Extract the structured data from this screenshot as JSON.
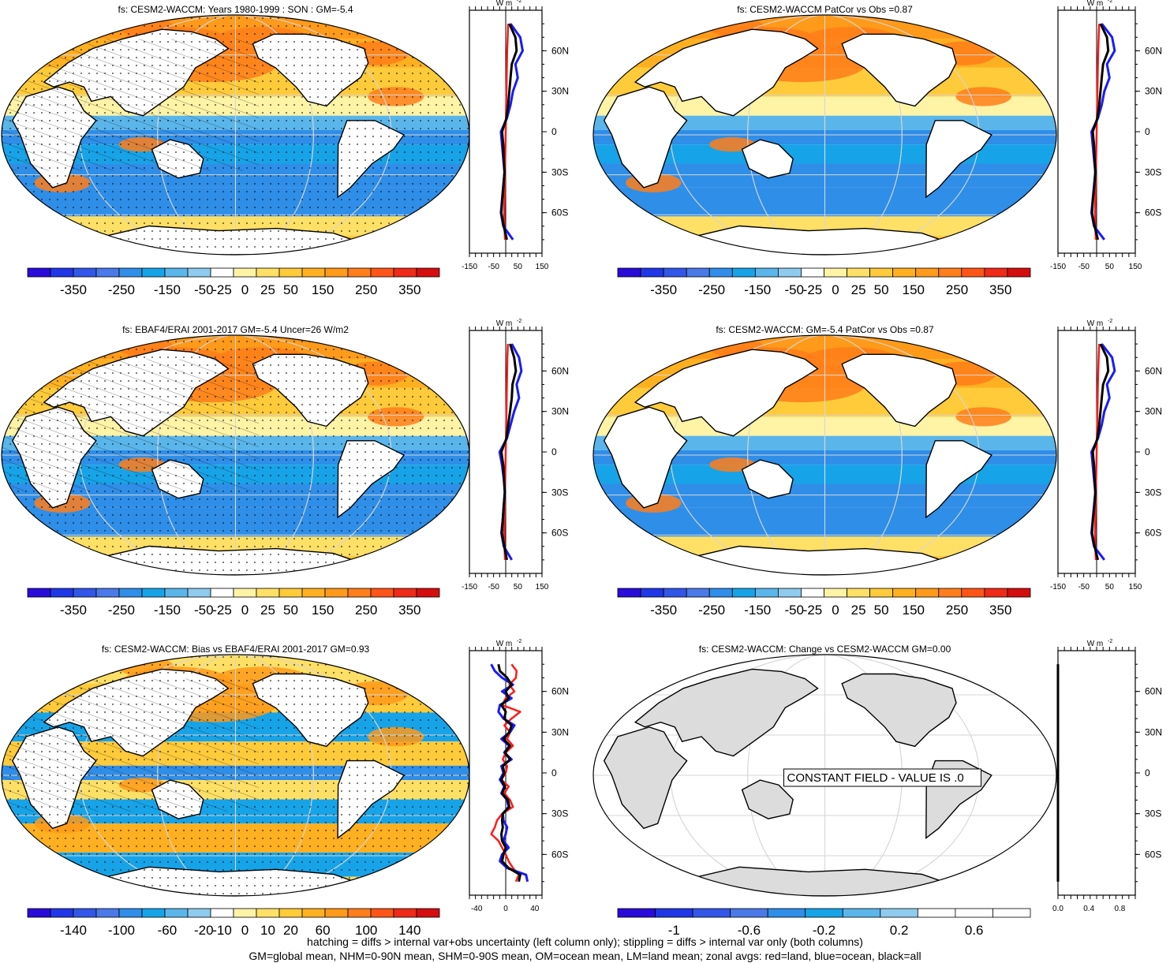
{
  "variable": "fs",
  "footer": {
    "line1": "hatching = diffs > internal var+obs uncertainty (left column only); stippling = diffs > internal var only (both columns)",
    "line2": "GM=global mean, NHM=0-90N mean, SHM=0-90S mean, OM=ocean mean, LM=land mean; zonal avgs: red=land, blue=ocean, black=all"
  },
  "colors": {
    "land": "#ffffff",
    "land_gray": "#dcdcdc",
    "grid": "#d6d6d6",
    "zonal_land": "#ff1a1a",
    "zonal_ocean": "#1a1aff",
    "zonal_all": "#000000",
    "palette": [
      "#2a0bd9",
      "#1f37e6",
      "#3257e8",
      "#4a79e8",
      "#2f8ee8",
      "#17a3e8",
      "#5ab6ea",
      "#8ecbee",
      "#ffffff",
      "#fff3a6",
      "#ffe066",
      "#ffcb3a",
      "#ffb020",
      "#ff9a1a",
      "#ff7e1a",
      "#ff5518",
      "#ee2a18",
      "#d40e0e"
    ]
  },
  "panels": [
    {
      "id": "model",
      "title": "fs: CESM2-WACCM: Years 1980-1999 : SON : GM=-5.4",
      "map_fill": "diverging",
      "hatching": true,
      "stippling": true,
      "colorbar": {
        "labels": [
          "-350",
          "-250",
          "-150",
          "-50",
          "-25",
          "0",
          "25",
          "50",
          "150",
          "250",
          "350"
        ],
        "n_colors": 18
      },
      "zonal": {
        "unit_label": "W m",
        "unit_exp": "-2",
        "xticks": [
          "-150",
          "-50",
          "50",
          "150"
        ],
        "xlim": [
          -150,
          150
        ],
        "lat_labels": [
          "60N",
          "30N",
          "0",
          "30S",
          "60S"
        ],
        "lat": [
          80,
          70,
          60,
          50,
          40,
          30,
          20,
          10,
          0,
          -10,
          -20,
          -30,
          -40,
          -50,
          -60,
          -70,
          -80
        ],
        "land": [
          10,
          8,
          6,
          5,
          4,
          3,
          2,
          1,
          0,
          -1,
          -2,
          -3,
          -4,
          -5,
          -6,
          -5,
          -3
        ],
        "ocean": [
          20,
          60,
          70,
          40,
          50,
          30,
          20,
          5,
          -20,
          -15,
          -10,
          -5,
          -10,
          -15,
          -20,
          -10,
          30
        ],
        "all": [
          15,
          40,
          45,
          25,
          20,
          15,
          10,
          3,
          -15,
          -10,
          -8,
          -5,
          -9,
          -14,
          -18,
          -8,
          5
        ]
      }
    },
    {
      "id": "model-patcor",
      "title": "fs: CESM2-WACCM PatCor vs Obs =0.87",
      "map_fill": "diverging",
      "hatching": false,
      "stippling": false,
      "colorbar": {
        "labels": [
          "-350",
          "-250",
          "-150",
          "-50",
          "-25",
          "0",
          "25",
          "50",
          "150",
          "250",
          "350"
        ],
        "n_colors": 18
      },
      "zonal": {
        "unit_label": "W m",
        "unit_exp": "-2",
        "xticks": [
          "-150",
          "-50",
          "50",
          "150"
        ],
        "xlim": [
          -150,
          150
        ],
        "lat_labels": [
          "60N",
          "30N",
          "0",
          "30S",
          "60S"
        ],
        "lat": [
          80,
          70,
          60,
          50,
          40,
          30,
          20,
          10,
          0,
          -10,
          -20,
          -30,
          -40,
          -50,
          -60,
          -70,
          -80
        ],
        "land": [
          10,
          8,
          6,
          5,
          4,
          3,
          2,
          1,
          0,
          -1,
          -2,
          -3,
          -4,
          -5,
          -6,
          -5,
          -3
        ],
        "ocean": [
          20,
          60,
          70,
          40,
          50,
          30,
          20,
          5,
          -20,
          -15,
          -10,
          -5,
          -10,
          -15,
          -20,
          -10,
          30
        ],
        "all": [
          15,
          40,
          45,
          25,
          20,
          15,
          10,
          3,
          -15,
          -10,
          -8,
          -5,
          -9,
          -14,
          -18,
          -8,
          5
        ]
      }
    },
    {
      "id": "obs",
      "title": "fs: EBAF4/ERAI 2001-2017 GM=-5.4 Uncer=26 W/m2",
      "map_fill": "diverging",
      "hatching": true,
      "stippling": true,
      "colorbar": {
        "labels": [
          "-350",
          "-250",
          "-150",
          "-50",
          "-25",
          "0",
          "25",
          "50",
          "150",
          "250",
          "350"
        ],
        "n_colors": 18
      },
      "zonal": {
        "unit_label": "W m",
        "unit_exp": "-2",
        "xticks": [
          "-150",
          "-50",
          "50",
          "150"
        ],
        "xlim": [
          -150,
          150
        ],
        "lat_labels": [
          "60N",
          "30N",
          "0",
          "30S",
          "60S"
        ],
        "lat": [
          80,
          70,
          60,
          50,
          40,
          30,
          20,
          10,
          0,
          -10,
          -20,
          -30,
          -40,
          -50,
          -60,
          -70,
          -80
        ],
        "land": [
          9,
          7,
          6,
          5,
          4,
          3,
          2,
          1,
          0,
          -1,
          -2,
          -3,
          -4,
          -5,
          -6,
          -5,
          -3
        ],
        "ocean": [
          25,
          55,
          65,
          45,
          55,
          35,
          20,
          5,
          -25,
          -15,
          -8,
          -3,
          -8,
          -12,
          -18,
          -8,
          25
        ],
        "all": [
          18,
          35,
          42,
          28,
          25,
          18,
          10,
          3,
          -18,
          -10,
          -7,
          -4,
          -8,
          -12,
          -16,
          -6,
          5
        ]
      }
    },
    {
      "id": "model-gm",
      "title": "fs: CESM2-WACCM: GM=-5.4 PatCor vs Obs =0.87",
      "map_fill": "diverging",
      "hatching": false,
      "stippling": false,
      "colorbar": {
        "labels": [
          "-350",
          "-250",
          "-150",
          "-50",
          "-25",
          "0",
          "25",
          "50",
          "150",
          "250",
          "350"
        ],
        "n_colors": 18
      },
      "zonal": {
        "unit_label": "W m",
        "unit_exp": "-2",
        "xticks": [
          "-150",
          "-50",
          "50",
          "150"
        ],
        "xlim": [
          -150,
          150
        ],
        "lat_labels": [
          "60N",
          "30N",
          "0",
          "30S",
          "60S"
        ],
        "lat": [
          80,
          70,
          60,
          50,
          40,
          30,
          20,
          10,
          0,
          -10,
          -20,
          -30,
          -40,
          -50,
          -60,
          -70,
          -80
        ],
        "land": [
          10,
          8,
          6,
          5,
          4,
          3,
          2,
          1,
          0,
          -1,
          -2,
          -3,
          -4,
          -5,
          -6,
          -5,
          -3
        ],
        "ocean": [
          20,
          60,
          70,
          40,
          50,
          30,
          20,
          5,
          -20,
          -15,
          -10,
          -5,
          -10,
          -15,
          -20,
          -10,
          30
        ],
        "all": [
          15,
          40,
          45,
          25,
          20,
          15,
          10,
          3,
          -15,
          -10,
          -8,
          -5,
          -9,
          -14,
          -18,
          -8,
          5
        ]
      }
    },
    {
      "id": "bias",
      "title": "fs: CESM2-WACCM: Bias vs EBAF4/ERAI 2001-2017  GM=0.93",
      "map_fill": "bias",
      "hatching": true,
      "stippling": true,
      "colorbar": {
        "labels": [
          "-140",
          "-100",
          "-60",
          "-20",
          "-10",
          "0",
          "10",
          "20",
          "60",
          "100",
          "140"
        ],
        "n_colors": 18
      },
      "zonal": {
        "unit_label": "W m",
        "unit_exp": "-2",
        "xticks": [
          "-40",
          "0",
          "40"
        ],
        "xlim": [
          -50,
          50
        ],
        "lat_labels": [
          "60N",
          "30N",
          "0",
          "30S",
          "60S"
        ],
        "lat": [
          80,
          75,
          70,
          65,
          60,
          55,
          50,
          45,
          40,
          35,
          30,
          25,
          20,
          15,
          10,
          5,
          0,
          -5,
          -10,
          -15,
          -20,
          -25,
          -30,
          -35,
          -40,
          -45,
          -50,
          -55,
          -60,
          -65,
          -70,
          -75,
          -80
        ],
        "land": [
          8,
          15,
          14,
          5,
          12,
          0,
          -5,
          20,
          8,
          -2,
          6,
          2,
          10,
          0,
          -4,
          2,
          0,
          -6,
          4,
          -2,
          6,
          10,
          -5,
          -12,
          -15,
          -20,
          -10,
          -5,
          0,
          4,
          10,
          18,
          14
        ],
        "ocean": [
          -20,
          -15,
          -5,
          10,
          -5,
          8,
          -8,
          -10,
          -3,
          12,
          6,
          -6,
          5,
          -2,
          8,
          -6,
          -3,
          -8,
          -2,
          -6,
          2,
          4,
          -4,
          -3,
          2,
          0,
          -3,
          4,
          -5,
          -8,
          2,
          28,
          30
        ],
        "all": [
          -10,
          -8,
          2,
          8,
          0,
          4,
          -6,
          0,
          -2,
          8,
          5,
          -3,
          6,
          -1,
          6,
          -4,
          -2,
          -6,
          -1,
          -5,
          3,
          5,
          -4,
          -5,
          -4,
          -6,
          -5,
          0,
          -3,
          -5,
          4,
          20,
          18
        ]
      }
    },
    {
      "id": "change",
      "title": "fs: CESM2-WACCM: Change vs CESM2-WACCM GM=0.00",
      "map_fill": "constant",
      "constant_label": "CONSTANT FIELD - VALUE IS .0",
      "hatching": false,
      "stippling": false,
      "colorbar": {
        "labels": [
          "-1",
          "-0.6",
          "-0.2",
          "0.2",
          "0.6"
        ],
        "n_colors": 11
      },
      "zonal": {
        "unit_label": "W m",
        "unit_exp": "-2",
        "xticks": [
          "0.0",
          "0.4",
          "0.8"
        ],
        "xlim": [
          0,
          1
        ],
        "lat_labels": [
          "60N",
          "30N",
          "0",
          "30S",
          "60S"
        ],
        "lat": [
          80,
          0,
          -80
        ],
        "land": [
          0,
          0,
          0
        ],
        "ocean": [
          0,
          0,
          0
        ],
        "all": [
          0,
          0,
          0
        ]
      }
    }
  ]
}
